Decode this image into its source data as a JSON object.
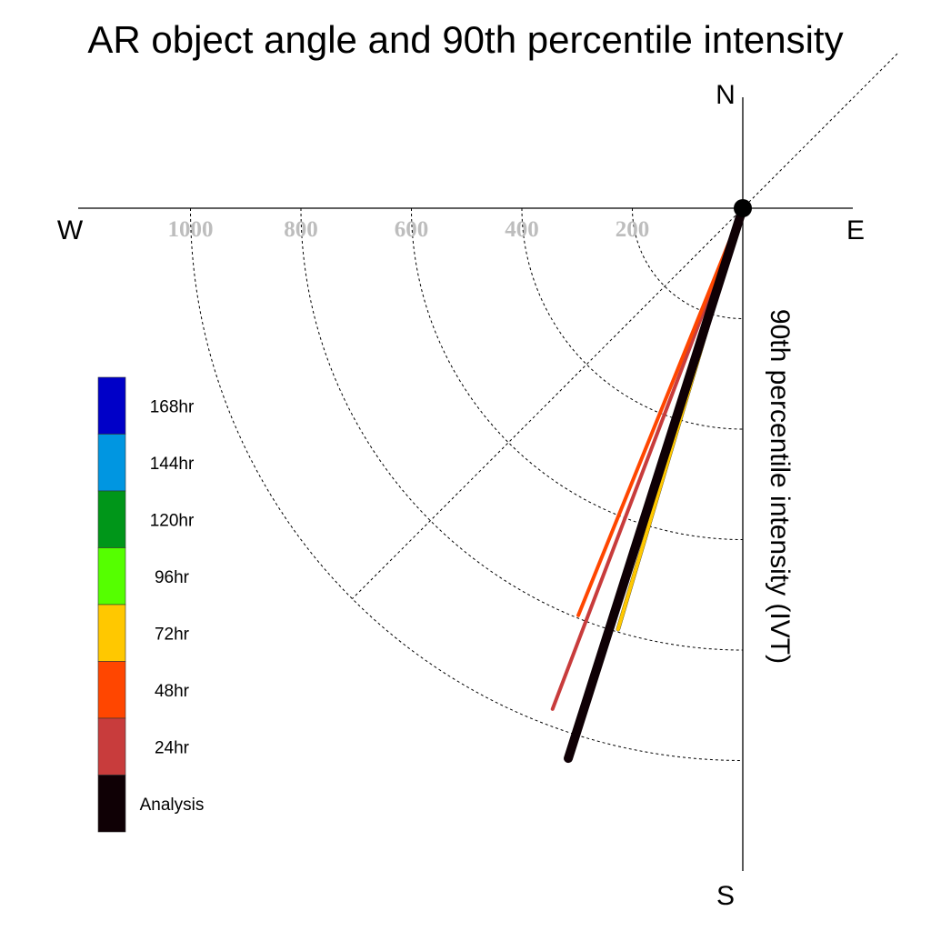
{
  "chart_data": {
    "type": "polar-vector",
    "title": "AR object angle and 90th percentile intensity",
    "ylabel": "90th percentile intensity (IVT)",
    "compass": {
      "north": "N",
      "south": "S",
      "east": "E",
      "west": "W"
    },
    "radial_ticks": [
      "200",
      "400",
      "600",
      "800",
      "1000"
    ],
    "radial_tick_values": [
      200,
      400,
      600,
      800,
      1000
    ],
    "radial_max": 1200,
    "grid": true,
    "legend": {
      "placement": "left",
      "entries": [
        {
          "label": "168hr",
          "color": "#0000c8"
        },
        {
          "label": "144hr",
          "color": "#0096e1"
        },
        {
          "label": "120hr",
          "color": "#009619"
        },
        {
          "label": "96hr",
          "color": "#55ff00"
        },
        {
          "label": "72hr",
          "color": "#ffc800"
        },
        {
          "label": "48hr",
          "color": "#ff4600"
        },
        {
          "label": "24hr",
          "color": "#c83c3c"
        },
        {
          "label": "Analysis",
          "color": "#0f0005"
        }
      ]
    },
    "series": [
      {
        "name": "72hr",
        "color": "#ffc800",
        "angle_deg": 196.5,
        "intensity": 795
      },
      {
        "name": "24hr",
        "color": "#c83c3c",
        "angle_deg": 200.8,
        "intensity": 970
      },
      {
        "name": "48hr",
        "color": "#ff4600",
        "angle_deg": 202.0,
        "intensity": 795
      },
      {
        "name": "Analysis",
        "color": "#0f0005",
        "angle_deg": 197.6,
        "intensity": 1045
      }
    ]
  }
}
